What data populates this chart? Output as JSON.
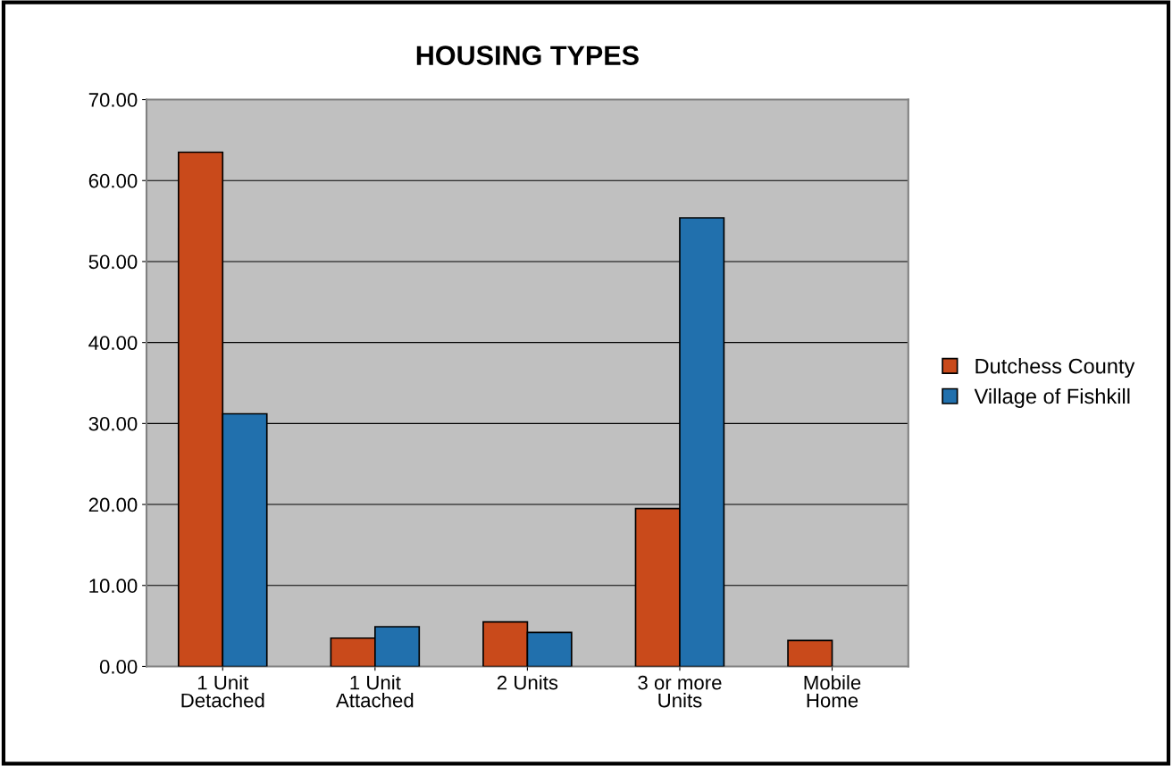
{
  "chart_data": {
    "type": "bar",
    "title": "HOUSING TYPES",
    "categories": [
      "1 Unit\nDetached",
      "1 Unit\nAttached",
      "2 Units",
      "3 or more\nUnits",
      "Mobile\nHome"
    ],
    "series": [
      {
        "name": "Dutchess County",
        "color": "#c94a1b",
        "values": [
          63.5,
          3.5,
          5.5,
          19.5,
          3.2
        ]
      },
      {
        "name": "Village of Fishkill",
        "color": "#2170ad",
        "values": [
          31.2,
          4.9,
          4.2,
          55.4,
          null
        ]
      }
    ],
    "ylim": [
      0,
      70
    ],
    "yticks": [
      {
        "value": 0,
        "label": "0.00"
      },
      {
        "value": 10,
        "label": "10.00"
      },
      {
        "value": 20,
        "label": "20.00"
      },
      {
        "value": 30,
        "label": "30.00"
      },
      {
        "value": 40,
        "label": "40.00"
      },
      {
        "value": 50,
        "label": "50.00"
      },
      {
        "value": 60,
        "label": "60.00"
      },
      {
        "value": 70,
        "label": "70.00"
      }
    ],
    "grid": "y",
    "legend": "right"
  }
}
